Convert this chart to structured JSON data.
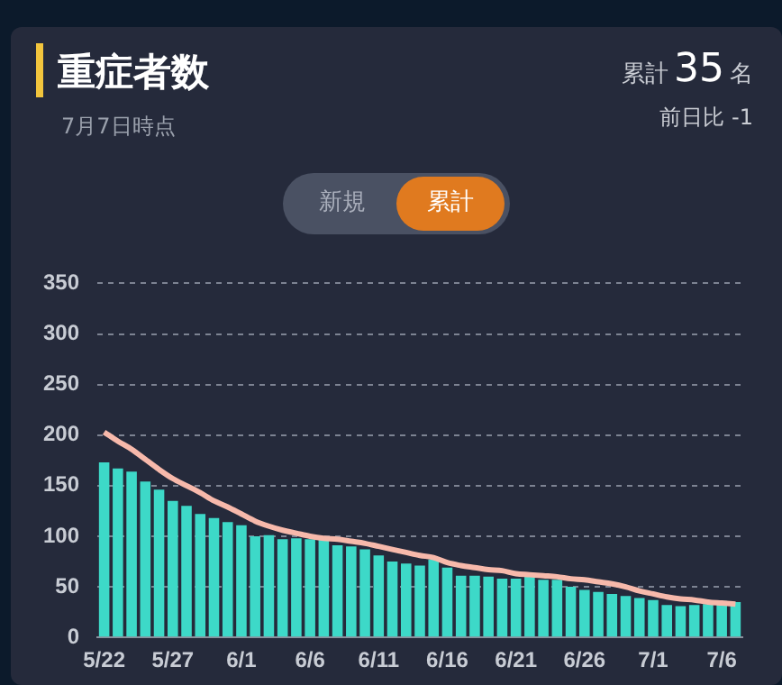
{
  "chart_data": {
    "type": "bar",
    "title": "重症者数",
    "subtitle": "7月7日時点",
    "annotations": [
      "累計",
      "35",
      "名",
      "前日比 -1",
      "新規",
      "累計"
    ],
    "categories": [
      "5/22",
      null,
      null,
      null,
      null,
      "5/27",
      null,
      null,
      null,
      null,
      "6/1",
      null,
      null,
      null,
      null,
      "6/6",
      null,
      null,
      null,
      null,
      "6/11",
      null,
      null,
      null,
      null,
      "6/16",
      null,
      null,
      null,
      null,
      "6/21",
      null,
      null,
      null,
      null,
      "6/26",
      null,
      null,
      null,
      null,
      "7/1",
      null,
      null,
      null,
      null,
      "7/6",
      null
    ],
    "series": [
      {
        "color": "#3dd9c8",
        "values": [
          173,
          167,
          164,
          154,
          146,
          135,
          130,
          122,
          118,
          114,
          111,
          100,
          101,
          97,
          98,
          97,
          98,
          91,
          90,
          87,
          81,
          75,
          73,
          71,
          77,
          69,
          61,
          61,
          60,
          58,
          58,
          60,
          57,
          57,
          50,
          47,
          45,
          43,
          41,
          39,
          37,
          32,
          31,
          32,
          33,
          36,
          35
        ]
      },
      {
        "type": "line",
        "color": "#f7b9ab",
        "marker": "none",
        "values": [
          203,
          194,
          186,
          176,
          166,
          157,
          150,
          143,
          135,
          129,
          122,
          115,
          110,
          106,
          103,
          100,
          98,
          97,
          95,
          93,
          90,
          87,
          84,
          81,
          79,
          74,
          71,
          69,
          67,
          66,
          63,
          62,
          61,
          60,
          58,
          57,
          55,
          53,
          50,
          46,
          43,
          40,
          38,
          37,
          35,
          34,
          33
        ]
      }
    ],
    "ylim": [
      0,
      350
    ],
    "yticks": [
      0,
      50,
      100,
      150,
      200,
      250,
      300,
      350
    ],
    "grid": "y",
    "legend": false
  }
}
